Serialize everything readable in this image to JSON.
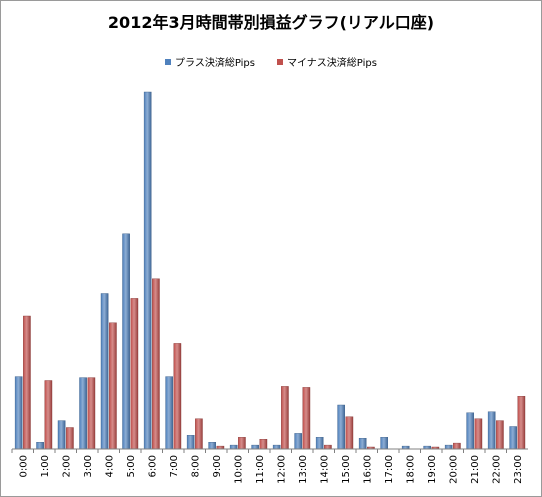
{
  "chart_data": {
    "type": "bar",
    "title": "2012年3月時間帯別損益グラフ(リアル口座)",
    "xlabel": "",
    "ylabel": "",
    "ylim": [
      0,
      365
    ],
    "grid": false,
    "legend_position": "top",
    "categories": [
      "0:00",
      "1:00",
      "2:00",
      "3:00",
      "4:00",
      "5:00",
      "6:00",
      "7:00",
      "8:00",
      "9:00",
      "10:00",
      "11:00",
      "12:00",
      "13:00",
      "14:00",
      "15:00",
      "16:00",
      "17:00",
      "18:00",
      "19:00",
      "20:00",
      "21:00",
      "22:00",
      "23:00"
    ],
    "series": [
      {
        "name": "プラス決済総Pips",
        "color": "#4f81bd",
        "values": [
          74,
          7,
          29,
          73,
          159,
          220,
          365,
          74,
          14,
          7,
          4,
          4,
          4,
          16,
          12,
          45,
          11,
          12,
          3,
          3,
          4,
          37,
          38,
          23
        ]
      },
      {
        "name": "マイナス決済総Pips",
        "color": "#c0504d",
        "values": [
          136,
          70,
          22,
          73,
          129,
          154,
          174,
          108,
          31,
          3,
          12,
          10,
          64,
          63,
          4,
          33,
          2,
          0,
          0,
          2,
          6,
          31,
          29,
          54
        ]
      }
    ]
  }
}
